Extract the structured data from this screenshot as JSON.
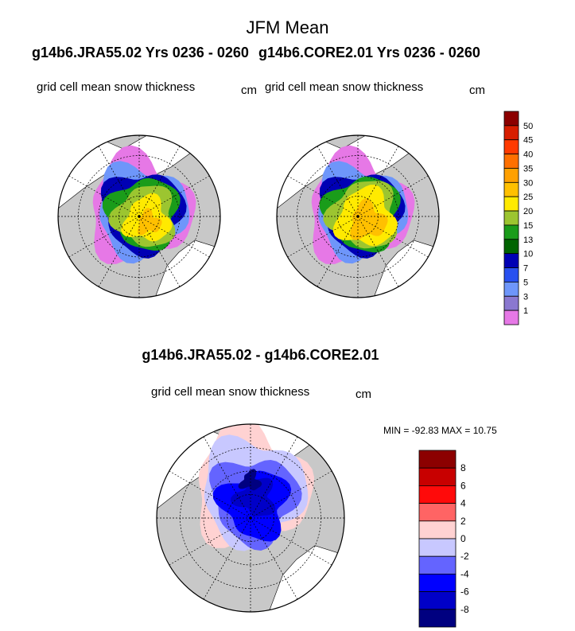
{
  "figure_title": "JFM Mean",
  "panels": {
    "left_header": "g14b6.JRA55.02  Yrs 0236 - 0260",
    "right_header": "g14b6.CORE2.01  Yrs 0236 - 0260",
    "left_subtitle": "grid cell mean snow thickness",
    "right_subtitle": "grid cell mean snow thickness",
    "left_units": "cm",
    "right_units": "cm"
  },
  "difference": {
    "title": "g14b6.JRA55.02 - g14b6.CORE2.01",
    "subtitle": "grid cell mean snow thickness",
    "units": "cm",
    "minmax": "MIN = -92.83 MAX =  10.75"
  },
  "chart_data": [
    {
      "type": "heatmap",
      "title": "g14b6.JRA55.02  Yrs 0236 - 0260",
      "subtitle": "grid cell mean snow thickness",
      "units": "cm",
      "projection": "north polar stereographic",
      "colorbar": {
        "levels": [
          "50",
          "45",
          "40",
          "35",
          "30",
          "25",
          "20",
          "15",
          "13",
          "10",
          "7",
          "5",
          "3",
          "1"
        ],
        "colors": [
          "#8c0000",
          "#d81e00",
          "#ff3a00",
          "#ff7000",
          "#ffa000",
          "#ffc000",
          "#ffea00",
          "#9cc530",
          "#1a9c1a",
          "#006400",
          "#0000b4",
          "#2850f0",
          "#6e96fa",
          "#8a78d0",
          "#e678e6"
        ]
      }
    },
    {
      "type": "heatmap",
      "title": "g14b6.CORE2.01  Yrs 0236 - 0260",
      "subtitle": "grid cell mean snow thickness",
      "units": "cm",
      "projection": "north polar stereographic",
      "colorbar": "shared with left panel"
    },
    {
      "type": "heatmap",
      "title": "g14b6.JRA55.02 - g14b6.CORE2.01",
      "subtitle": "grid cell mean snow thickness",
      "units": "cm",
      "min": -92.83,
      "max": 10.75,
      "colorbar": {
        "levels": [
          "8",
          "6",
          "4",
          "2",
          "0",
          "-2",
          "-4",
          "-6",
          "-8"
        ],
        "colors": [
          "#8c0000",
          "#c80000",
          "#ff0a0a",
          "#ff6464",
          "#ffd2d2",
          "#c8c8ff",
          "#6464ff",
          "#0000ff",
          "#0000c8",
          "#000080"
        ]
      }
    }
  ]
}
